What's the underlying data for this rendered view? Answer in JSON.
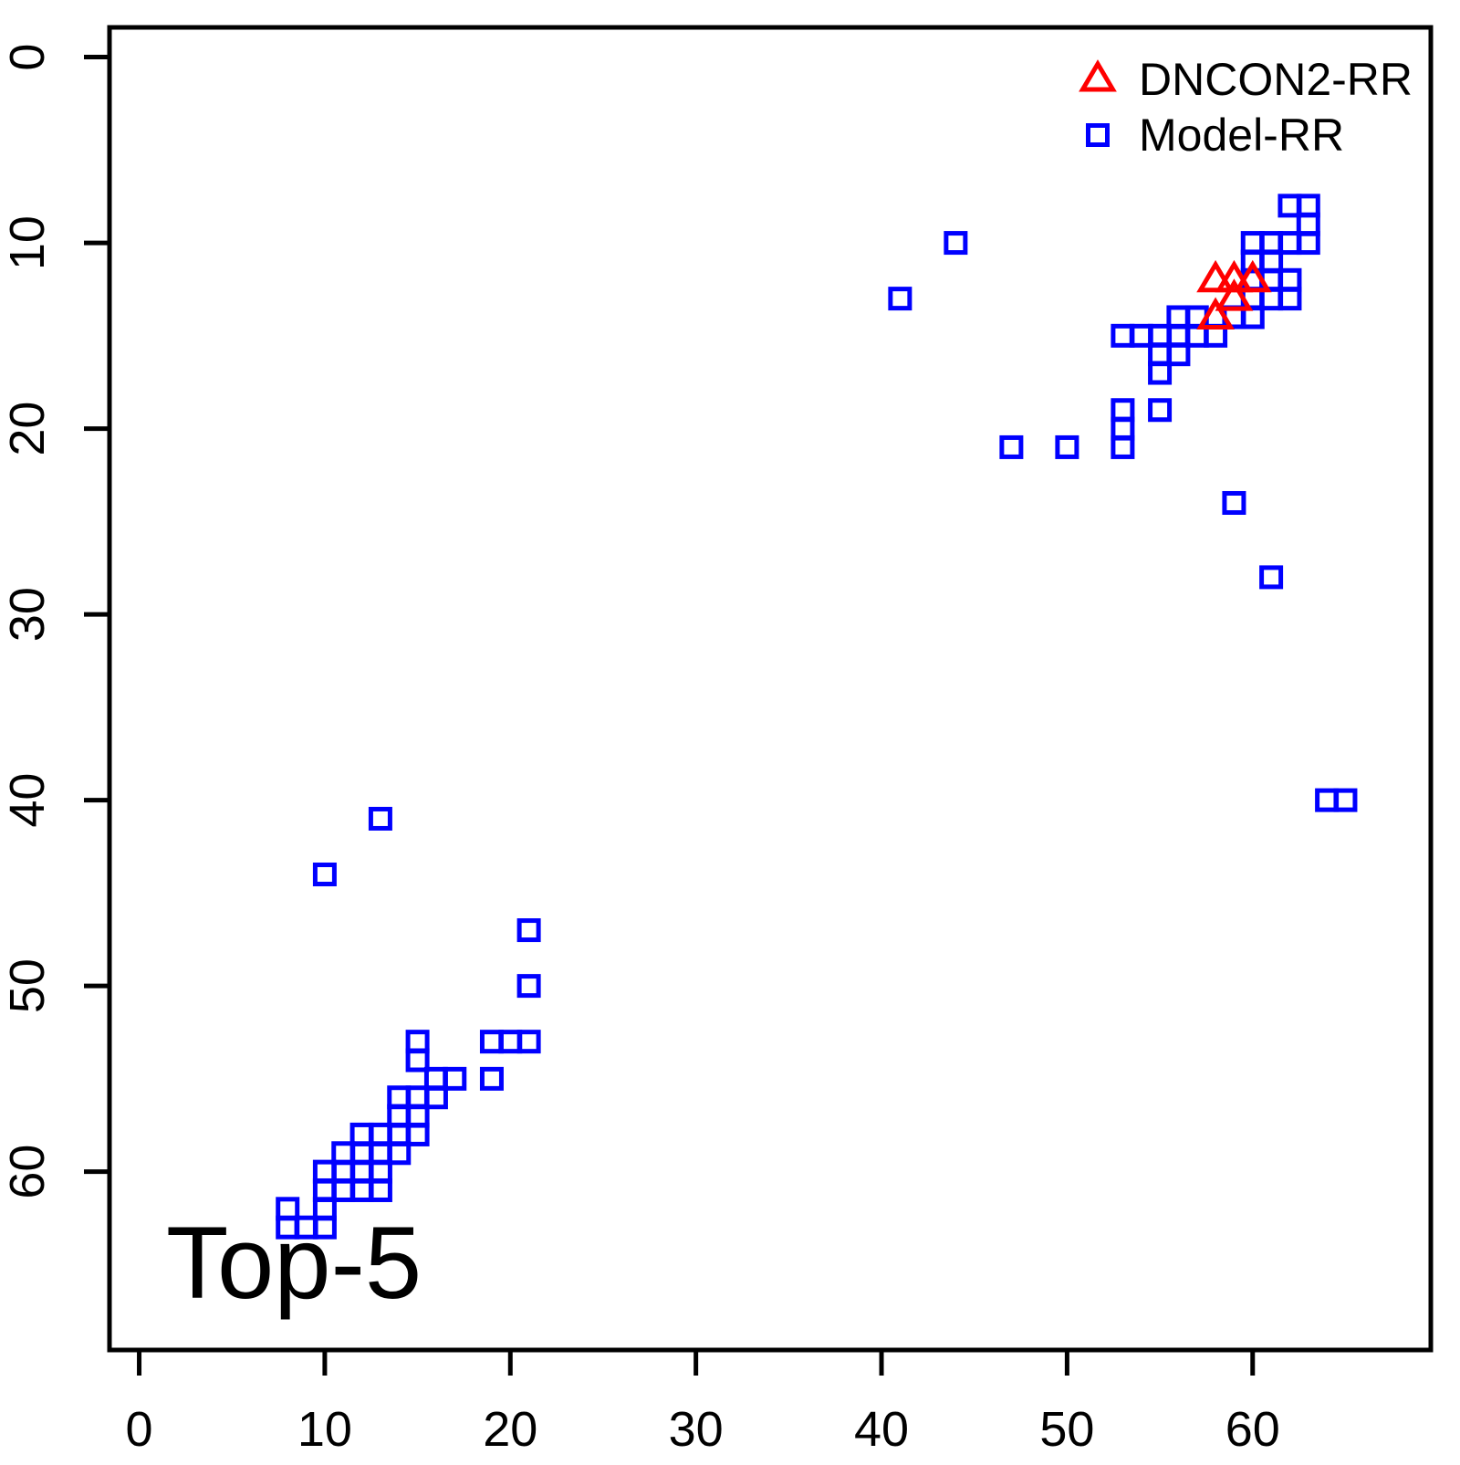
{
  "figure": {
    "annotation": "Top-5",
    "colors": {
      "dncon2": "#FF0000",
      "model": "#0000FF",
      "axis": "#000000",
      "background": "#FFFFFF"
    },
    "legend": {
      "items": [
        {
          "label": "DNCON2-RR",
          "symbol": "open-triangle",
          "color": "#FF0000"
        },
        {
          "label": "Model-RR",
          "symbol": "open-square",
          "color": "#0000FF"
        }
      ]
    }
  },
  "chart_data": {
    "type": "scatter",
    "title": "",
    "xlabel": "",
    "ylabel": "",
    "annotation": "Top-5",
    "x_ticks": [
      0,
      10,
      20,
      30,
      40,
      50,
      60
    ],
    "y_ticks": [
      0,
      10,
      20,
      30,
      40,
      50,
      60
    ],
    "xlim": [
      -1.6,
      69.6
    ],
    "ylim_top_to_bottom": [
      -1.6,
      69.6
    ],
    "y_axis_reversed": true,
    "grid": false,
    "legend_position": "top-right",
    "series": [
      {
        "name": "DNCON2-RR",
        "marker": "open-triangle",
        "color": "#FF0000",
        "points": [
          [
            58,
            12
          ],
          [
            59,
            12
          ],
          [
            60,
            12
          ],
          [
            59,
            13
          ],
          [
            58,
            14
          ]
        ]
      },
      {
        "name": "Model-RR",
        "marker": "open-square",
        "color": "#0000FF",
        "points": [
          [
            62,
            8
          ],
          [
            63,
            8
          ],
          [
            63,
            9
          ],
          [
            44,
            10
          ],
          [
            60,
            10
          ],
          [
            61,
            10
          ],
          [
            62,
            10
          ],
          [
            63,
            10
          ],
          [
            60,
            11
          ],
          [
            61,
            11
          ],
          [
            60,
            12
          ],
          [
            61,
            12
          ],
          [
            62,
            12
          ],
          [
            41,
            13
          ],
          [
            60,
            13
          ],
          [
            61,
            13
          ],
          [
            62,
            13
          ],
          [
            56,
            14
          ],
          [
            57,
            14
          ],
          [
            59,
            14
          ],
          [
            60,
            14
          ],
          [
            53,
            15
          ],
          [
            54,
            15
          ],
          [
            55,
            15
          ],
          [
            56,
            15
          ],
          [
            57,
            15
          ],
          [
            58,
            15
          ],
          [
            55,
            16
          ],
          [
            56,
            16
          ],
          [
            55,
            17
          ],
          [
            53,
            19
          ],
          [
            55,
            19
          ],
          [
            53,
            20
          ],
          [
            47,
            21
          ],
          [
            50,
            21
          ],
          [
            53,
            21
          ],
          [
            59,
            24
          ],
          [
            61,
            28
          ],
          [
            64,
            40
          ],
          [
            65,
            40
          ],
          [
            13,
            41
          ],
          [
            10,
            44
          ],
          [
            21,
            47
          ],
          [
            21,
            50
          ],
          [
            15,
            53
          ],
          [
            19,
            53
          ],
          [
            20,
            53
          ],
          [
            21,
            53
          ],
          [
            15,
            54
          ],
          [
            16,
            55
          ],
          [
            17,
            55
          ],
          [
            19,
            55
          ],
          [
            14,
            56
          ],
          [
            15,
            56
          ],
          [
            16,
            56
          ],
          [
            14,
            57
          ],
          [
            15,
            57
          ],
          [
            12,
            58
          ],
          [
            13,
            58
          ],
          [
            14,
            58
          ],
          [
            15,
            58
          ],
          [
            11,
            59
          ],
          [
            12,
            59
          ],
          [
            13,
            59
          ],
          [
            14,
            59
          ],
          [
            10,
            60
          ],
          [
            11,
            60
          ],
          [
            12,
            60
          ],
          [
            13,
            60
          ],
          [
            10,
            61
          ],
          [
            11,
            61
          ],
          [
            12,
            61
          ],
          [
            13,
            61
          ],
          [
            8,
            62
          ],
          [
            10,
            62
          ],
          [
            8,
            63
          ],
          [
            9,
            63
          ],
          [
            10,
            63
          ]
        ]
      }
    ]
  }
}
